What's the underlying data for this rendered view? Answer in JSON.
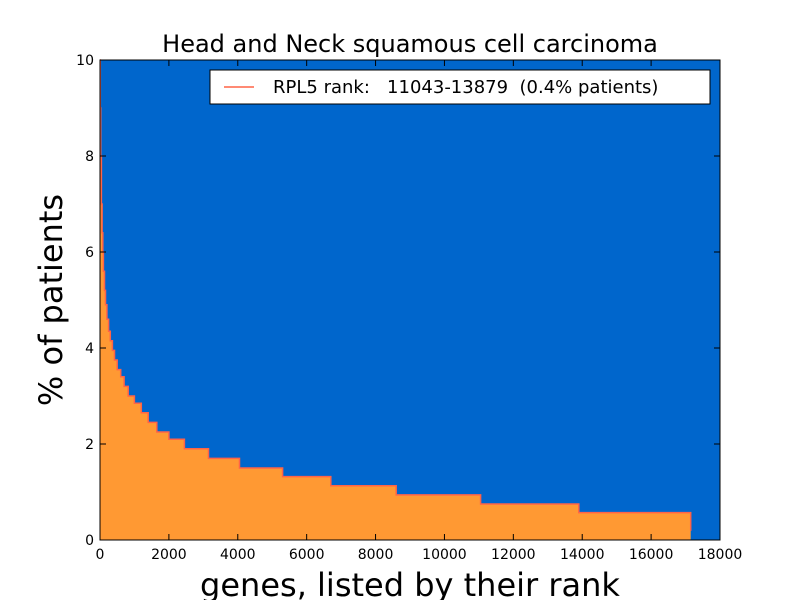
{
  "chart_data": {
    "type": "area",
    "title": "Head and Neck squamous cell carcinoma",
    "xlabel": "genes, listed by their rank",
    "ylabel": "% of patients",
    "xlim": [
      0,
      18000
    ],
    "ylim": [
      0,
      10
    ],
    "xticks": [
      "0",
      "2000",
      "4000",
      "6000",
      "8000",
      "10000",
      "12000",
      "14000",
      "16000",
      "18000"
    ],
    "yticks": [
      "0",
      "2",
      "4",
      "6",
      "8",
      "10"
    ],
    "grid": false,
    "legend_position": "top-right",
    "series": [
      {
        "name": "RPL5 rank:   11043-13879  (0.4% patients)",
        "x": [
          0,
          10,
          20,
          40,
          60,
          80,
          100,
          130,
          160,
          200,
          250,
          300,
          360,
          420,
          500,
          600,
          700,
          820,
          1000,
          1200,
          1400,
          1650,
          2000,
          2450,
          3150,
          4050,
          5300,
          6700,
          8600,
          11050,
          13900,
          17150
        ],
        "y": [
          10,
          9.0,
          8.0,
          7.0,
          6.4,
          6.0,
          5.6,
          5.2,
          4.9,
          4.6,
          4.35,
          4.15,
          3.95,
          3.75,
          3.55,
          3.4,
          3.2,
          3.0,
          2.85,
          2.65,
          2.45,
          2.25,
          2.1,
          1.9,
          1.7,
          1.5,
          1.32,
          1.13,
          0.94,
          0.75,
          0.57,
          0.38
        ],
        "end_x": 17150,
        "end_y": 0.19,
        "line_color": "#ff6347",
        "fill_color": "#ff9933"
      }
    ],
    "background_color": "#0066cc"
  }
}
